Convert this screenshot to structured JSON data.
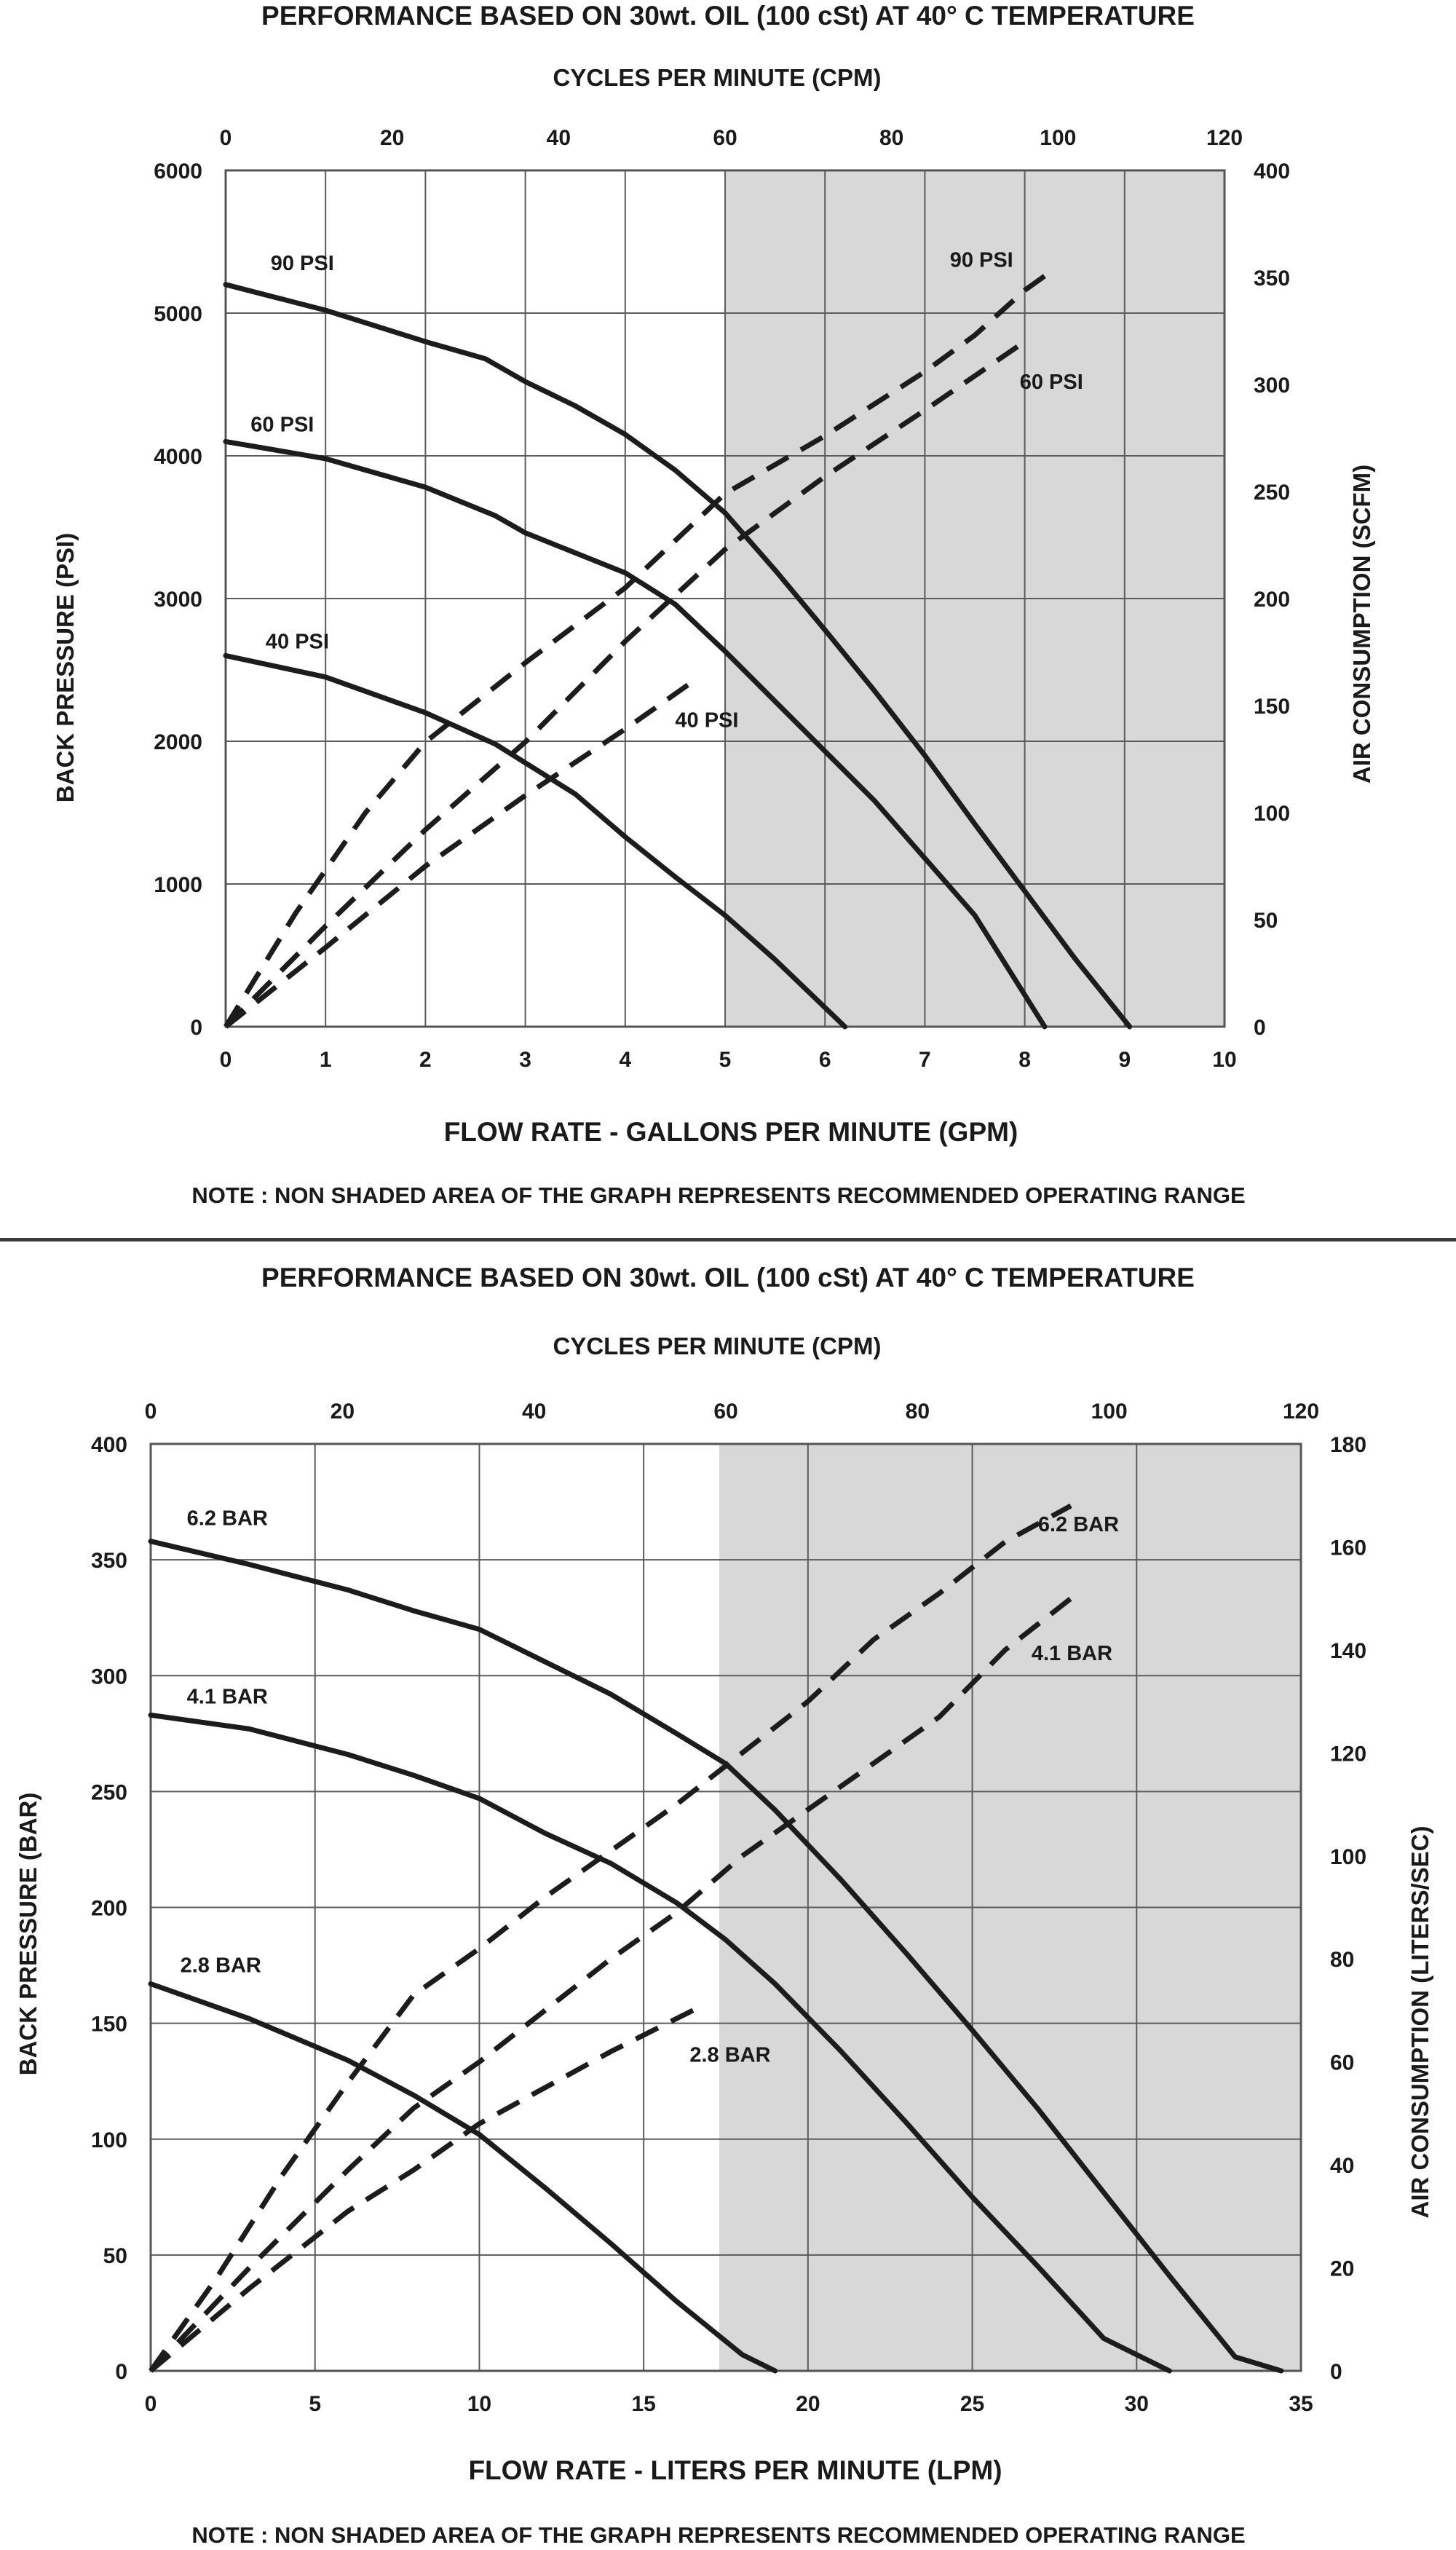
{
  "chart_data": [
    {
      "type": "line",
      "title": "PERFORMANCE  BASED ON 30wt. OIL (100 cSt) AT 40° C TEMPERATURE",
      "top_axis": {
        "label": "CYCLES PER MINUTE (CPM)",
        "range": [
          0,
          120
        ],
        "ticks": [
          "0",
          "20",
          "40",
          "60",
          "80",
          "100",
          "120"
        ]
      },
      "xlabel": "FLOW RATE - GALLONS PER MINUTE (GPM)",
      "xlim": [
        0,
        10
      ],
      "xticks": [
        "0",
        "1",
        "2",
        "3",
        "4",
        "5",
        "6",
        "7",
        "8",
        "9",
        "10"
      ],
      "ylabel": "BACK PRESSURE  (PSI)",
      "ylim": [
        0,
        6000
      ],
      "yticks": [
        "0",
        "1000",
        "2000",
        "3000",
        "4000",
        "5000",
        "6000"
      ],
      "y2label": "AIR CONSUMPTION  (SCFM)",
      "y2lim": [
        0,
        400
      ],
      "y2ticks": [
        "0",
        "50",
        "100",
        "150",
        "200",
        "250",
        "300",
        "350",
        "400"
      ],
      "shaded_region": {
        "x_from": 5,
        "x_to": 10,
        "color": "#d9d8d8"
      },
      "grid": true,
      "note": "NOTE : NON SHADED AREA OF THE GRAPH REPRESENTS RECOMMENDED OPERATING RANGE",
      "series": [
        {
          "name": "90 PSI",
          "kind": "pressure",
          "axis": "left",
          "label_at": [
            0.45,
            5300
          ],
          "points": [
            [
              0,
              5200
            ],
            [
              1,
              5020
            ],
            [
              2,
              4800
            ],
            [
              2.6,
              4680
            ],
            [
              3,
              4520
            ],
            [
              3.5,
              4350
            ],
            [
              4,
              4150
            ],
            [
              4.5,
              3900
            ],
            [
              5,
              3600
            ],
            [
              5.5,
              3200
            ],
            [
              6,
              2780
            ],
            [
              6.5,
              2350
            ],
            [
              7,
              1900
            ],
            [
              7.5,
              1420
            ],
            [
              8,
              950
            ],
            [
              8.5,
              480
            ],
            [
              9.05,
              0
            ]
          ]
        },
        {
          "name": "60 PSI",
          "kind": "pressure",
          "axis": "left",
          "label_at": [
            0.25,
            4170
          ],
          "points": [
            [
              0,
              4100
            ],
            [
              1,
              3980
            ],
            [
              2,
              3780
            ],
            [
              2.7,
              3580
            ],
            [
              3,
              3460
            ],
            [
              3.5,
              3320
            ],
            [
              4,
              3180
            ],
            [
              4.5,
              2960
            ],
            [
              5,
              2630
            ],
            [
              5.5,
              2280
            ],
            [
              6,
              1930
            ],
            [
              6.5,
              1580
            ],
            [
              7,
              1180
            ],
            [
              7.5,
              780
            ],
            [
              8.2,
              0
            ]
          ]
        },
        {
          "name": "40 PSI",
          "kind": "pressure",
          "axis": "left",
          "label_at": [
            0.4,
            2650
          ],
          "points": [
            [
              0,
              2600
            ],
            [
              1,
              2450
            ],
            [
              2,
              2200
            ],
            [
              2.7,
              1980
            ],
            [
              3.5,
              1630
            ],
            [
              4,
              1330
            ],
            [
              4.5,
              1050
            ],
            [
              5,
              780
            ],
            [
              5.5,
              470
            ],
            [
              6.2,
              0
            ]
          ]
        },
        {
          "name": "90 PSI",
          "kind": "air",
          "axis": "right",
          "label_at": [
            7.25,
            355
          ],
          "points": [
            [
              0,
              0
            ],
            [
              0.7,
              53
            ],
            [
              1.4,
              100
            ],
            [
              2,
              133
            ],
            [
              3,
              170
            ],
            [
              4,
              205
            ],
            [
              5,
              249
            ],
            [
              6,
              276
            ],
            [
              7,
              306
            ],
            [
              7.5,
              323
            ],
            [
              8,
              344
            ],
            [
              8.3,
              354
            ]
          ]
        },
        {
          "name": "60 PSI",
          "kind": "air",
          "axis": "right",
          "label_at": [
            7.95,
            298
          ],
          "points": [
            [
              0,
              0
            ],
            [
              1,
              47
            ],
            [
              2,
              92
            ],
            [
              3,
              133
            ],
            [
              4,
              180
            ],
            [
              5,
              223
            ],
            [
              6,
              257
            ],
            [
              7,
              288
            ],
            [
              8,
              320
            ]
          ]
        },
        {
          "name": "40 PSI",
          "kind": "air",
          "axis": "right",
          "label_at": [
            4.5,
            140
          ],
          "points": [
            [
              0,
              0
            ],
            [
              1,
              37
            ],
            [
              2,
              75
            ],
            [
              3,
              108
            ],
            [
              4,
              139
            ],
            [
              4.7,
              162
            ]
          ]
        }
      ]
    },
    {
      "type": "line",
      "title": "PERFORMANCE  BASED ON 30wt. OIL (100 cSt) AT 40° C TEMPERATURE",
      "top_axis": {
        "label": "CYCLES PER MINUTE (CPM)",
        "range": [
          0,
          120
        ],
        "ticks": [
          "0",
          "20",
          "40",
          "60",
          "80",
          "100",
          "120"
        ]
      },
      "xlabel": "FLOW RATE - LITERS PER MINUTE (LPM)",
      "xlim": [
        0,
        35
      ],
      "xticks": [
        "0",
        "5",
        "10",
        "15",
        "20",
        "25",
        "30",
        "35"
      ],
      "ylabel": "BACK PRESSURE (BAR)",
      "ylim": [
        0,
        400
      ],
      "yticks": [
        "0",
        "50",
        "100",
        "150",
        "200",
        "250",
        "300",
        "350",
        "400"
      ],
      "y2label": "AIR CONSUMPTION  (LITERS/SEC)",
      "y2lim": [
        0,
        180
      ],
      "y2ticks": [
        "0",
        "20",
        "40",
        "60",
        "80",
        "100",
        "120",
        "140",
        "160",
        "180"
      ],
      "shaded_region": {
        "x_from": 17.3,
        "x_to": 35,
        "color": "#d9d8d8"
      },
      "grid": true,
      "note": "NOTE : NON SHADED AREA OF THE GRAPH REPRESENTS RECOMMENDED OPERATING RANGE",
      "series": [
        {
          "name": "6.2 BAR",
          "kind": "pressure",
          "axis": "left",
          "label_at": [
            1.1,
            365
          ],
          "points": [
            [
              0,
              358
            ],
            [
              3,
              348
            ],
            [
              6,
              337
            ],
            [
              8,
              328
            ],
            [
              10,
              320
            ],
            [
              12,
              306
            ],
            [
              14,
              292
            ],
            [
              16,
              275
            ],
            [
              17.5,
              262
            ],
            [
              19,
              242
            ],
            [
              21,
              212
            ],
            [
              23,
              180
            ],
            [
              25,
              147
            ],
            [
              27,
              113
            ],
            [
              29,
              77
            ],
            [
              31,
              41
            ],
            [
              33,
              6
            ],
            [
              34.4,
              0
            ]
          ]
        },
        {
          "name": "4.1 BAR",
          "kind": "pressure",
          "axis": "left",
          "label_at": [
            1.1,
            288
          ],
          "points": [
            [
              0,
              283
            ],
            [
              3,
              277
            ],
            [
              6,
              266
            ],
            [
              8,
              257
            ],
            [
              10,
              247
            ],
            [
              12,
              232
            ],
            [
              14,
              219
            ],
            [
              16,
              202
            ],
            [
              17.5,
              186
            ],
            [
              19,
              167
            ],
            [
              21,
              138
            ],
            [
              23,
              107
            ],
            [
              25,
              75
            ],
            [
              27,
              45
            ],
            [
              29,
              14
            ],
            [
              31,
              0
            ]
          ]
        },
        {
          "name": "2.8 BAR",
          "kind": "pressure",
          "axis": "left",
          "label_at": [
            0.9,
            172
          ],
          "points": [
            [
              0,
              167
            ],
            [
              3,
              152
            ],
            [
              6,
              134
            ],
            [
              8,
              119
            ],
            [
              10,
              102
            ],
            [
              12,
              79
            ],
            [
              14,
              55
            ],
            [
              16,
              30
            ],
            [
              18,
              7
            ],
            [
              19,
              0
            ]
          ]
        },
        {
          "name": "6.2 BAR",
          "kind": "air",
          "axis": "right",
          "label_at": [
            27,
            163
          ],
          "points": [
            [
              0,
              0
            ],
            [
              2,
              18
            ],
            [
              4,
              38
            ],
            [
              6,
              56
            ],
            [
              8,
              73
            ],
            [
              10,
              82
            ],
            [
              12,
              92
            ],
            [
              14,
              101
            ],
            [
              16,
              110
            ],
            [
              18,
              120
            ],
            [
              20,
              130
            ],
            [
              22,
              142
            ],
            [
              24,
              151
            ],
            [
              26,
              161
            ],
            [
              28,
              168
            ]
          ]
        },
        {
          "name": "4.1 BAR",
          "kind": "air",
          "axis": "right",
          "label_at": [
            26.8,
            138
          ],
          "points": [
            [
              0,
              0
            ],
            [
              3,
              20
            ],
            [
              6,
              39
            ],
            [
              8,
              51
            ],
            [
              10,
              60
            ],
            [
              12,
              70
            ],
            [
              14,
              80
            ],
            [
              16,
              89
            ],
            [
              18,
              100
            ],
            [
              20,
              109
            ],
            [
              22,
              118
            ],
            [
              24,
              127
            ],
            [
              26,
              140
            ],
            [
              28,
              150
            ]
          ]
        },
        {
          "name": "2.8 BAR",
          "kind": "air",
          "axis": "right",
          "label_at": [
            16.4,
            60
          ],
          "points": [
            [
              0,
              0
            ],
            [
              3,
              16
            ],
            [
              6,
              31
            ],
            [
              8,
              39
            ],
            [
              10,
              48
            ],
            [
              12,
              55
            ],
            [
              14,
              62
            ],
            [
              16.5,
              70
            ]
          ]
        }
      ]
    }
  ]
}
